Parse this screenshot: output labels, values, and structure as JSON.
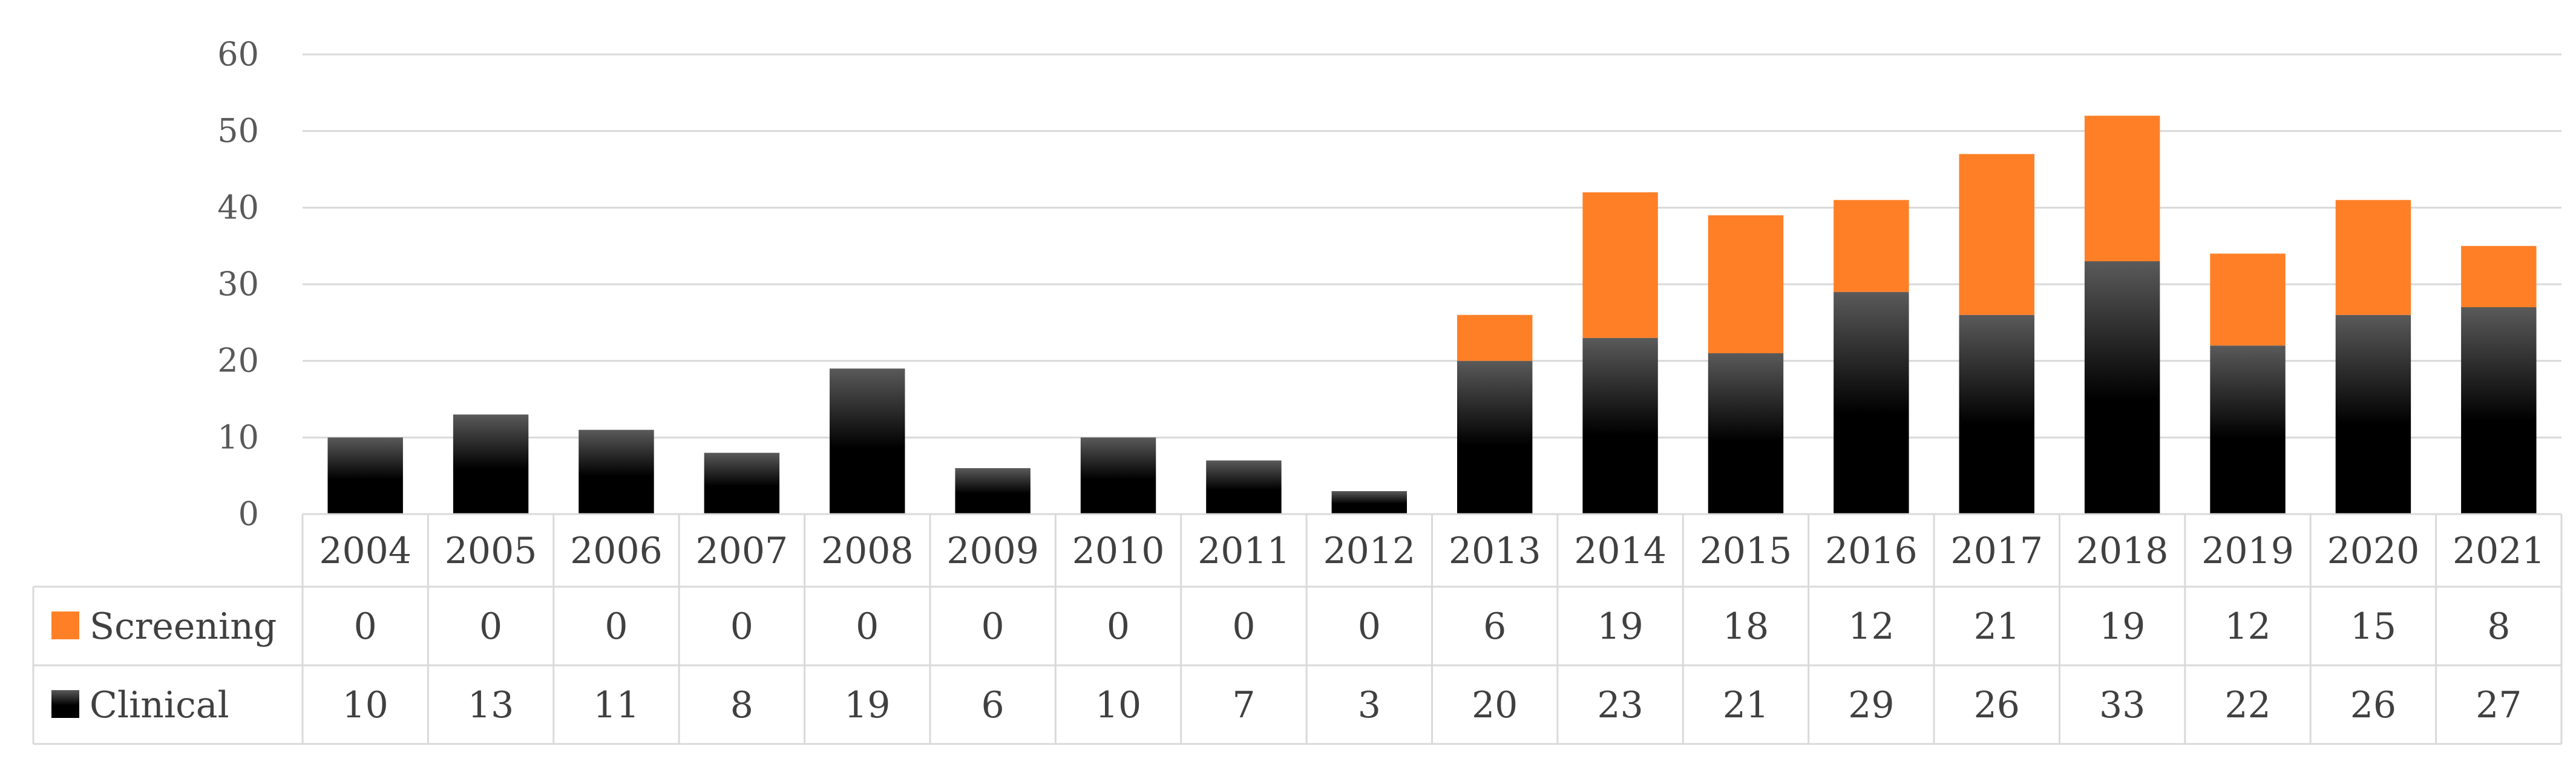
{
  "chart_data": {
    "type": "bar",
    "stacked": true,
    "categories": [
      "2004",
      "2005",
      "2006",
      "2007",
      "2008",
      "2009",
      "2010",
      "2011",
      "2012",
      "2013",
      "2014",
      "2015",
      "2016",
      "2017",
      "2018",
      "2019",
      "2020",
      "2021"
    ],
    "series": [
      {
        "name": "Clinical",
        "color": "#000000",
        "values": [
          10,
          13,
          11,
          8,
          19,
          6,
          10,
          7,
          3,
          20,
          23,
          21,
          29,
          26,
          33,
          22,
          26,
          27
        ]
      },
      {
        "name": "Screening",
        "color": "#ff7f27",
        "values": [
          0,
          0,
          0,
          0,
          0,
          0,
          0,
          0,
          0,
          6,
          19,
          18,
          12,
          21,
          19,
          12,
          15,
          8
        ]
      }
    ],
    "ylim": [
      0,
      60
    ],
    "yticks": [
      0,
      10,
      20,
      30,
      40,
      50,
      60
    ],
    "grid": true,
    "legend": "data-table-left",
    "table_rows": [
      "Screening",
      "Clinical"
    ]
  }
}
